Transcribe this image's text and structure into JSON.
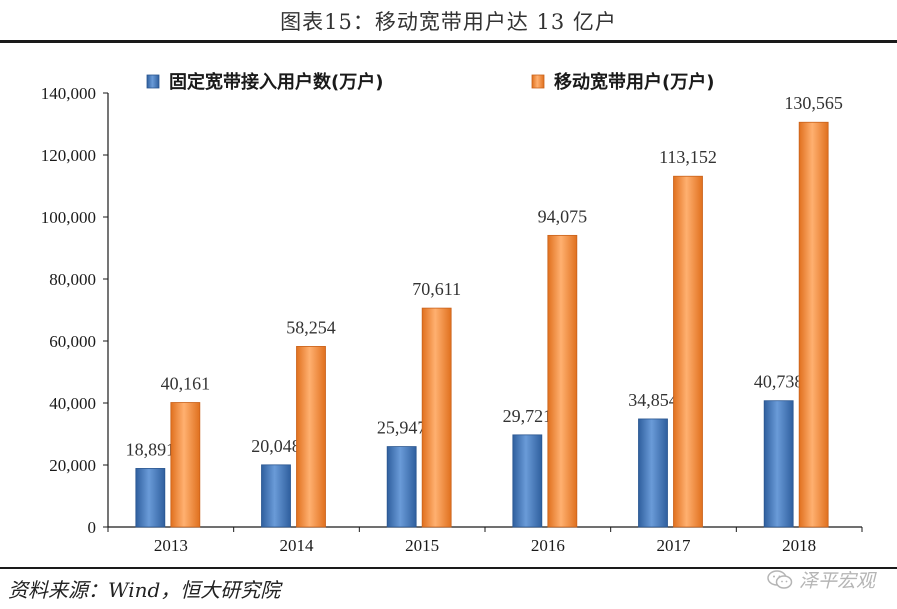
{
  "header": {
    "title": "图表15：移动宽带用户达 13 亿户"
  },
  "footer": {
    "source": "资料来源：Wind，恒大研究院",
    "watermark": "泽平宏观"
  },
  "colors": {
    "fixed": "#4a7fc1",
    "mobile": "#f08a3a"
  },
  "chart_data": {
    "type": "bar",
    "categories": [
      "2013",
      "2014",
      "2015",
      "2016",
      "2017",
      "2018"
    ],
    "series": [
      {
        "name": "固定宽带接入用户数(万户)",
        "values": [
          18891,
          20048,
          25947,
          29721,
          34854,
          40738
        ],
        "labels": [
          "18,891",
          "20,048",
          "25,947",
          "29,721",
          "34,854",
          "40,738"
        ]
      },
      {
        "name": "移动宽带用户(万户)",
        "values": [
          40161,
          58254,
          70611,
          94075,
          113152,
          130565
        ],
        "labels": [
          "40,161",
          "58,254",
          "70,611",
          "94,075",
          "113,152",
          "130,565"
        ]
      }
    ],
    "ylim": [
      0,
      140000
    ],
    "yticks": [
      "0",
      "20,000",
      "40,000",
      "60,000",
      "80,000",
      "100,000",
      "120,000",
      "140,000"
    ],
    "legend": "top"
  }
}
